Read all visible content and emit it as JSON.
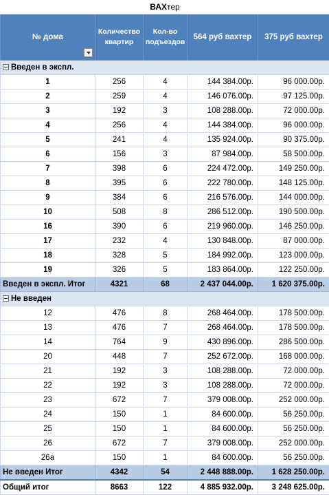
{
  "title_bold": "ВАХ",
  "title_rest": "тер",
  "headers": {
    "house": "№ дома",
    "apartments": "Количество квартир",
    "entrances": "Кол-во подъездов",
    "price564": "564 руб вахтер",
    "price375": "375 руб вахтер"
  },
  "groups": [
    {
      "label": "Введен в экспл.",
      "bold_numbers": true,
      "rows": [
        {
          "house": "1",
          "apartments": "256",
          "entrances": "4",
          "price564": "144 384.00р.",
          "price375": "96 000.00р."
        },
        {
          "house": "2",
          "apartments": "259",
          "entrances": "4",
          "price564": "146 076.00р.",
          "price375": "97 125.00р."
        },
        {
          "house": "3",
          "apartments": "192",
          "entrances": "3",
          "price564": "108 288.00р.",
          "price375": "72 000.00р."
        },
        {
          "house": "4",
          "apartments": "256",
          "entrances": "4",
          "price564": "144 384.00р.",
          "price375": "96 000.00р."
        },
        {
          "house": "5",
          "apartments": "241",
          "entrances": "4",
          "price564": "135 924.00р.",
          "price375": "90 375.00р."
        },
        {
          "house": "6",
          "apartments": "156",
          "entrances": "3",
          "price564": "87 984.00р.",
          "price375": "58 500.00р."
        },
        {
          "house": "7",
          "apartments": "398",
          "entrances": "6",
          "price564": "224 472.00р.",
          "price375": "149 250.00р."
        },
        {
          "house": "8",
          "apartments": "395",
          "entrances": "6",
          "price564": "222 780.00р.",
          "price375": "148 125.00р."
        },
        {
          "house": "9",
          "apartments": "384",
          "entrances": "6",
          "price564": "216 576.00р.",
          "price375": "144 000.00р."
        },
        {
          "house": "10",
          "apartments": "508",
          "entrances": "8",
          "price564": "286 512.00р.",
          "price375": "190 500.00р."
        },
        {
          "house": "16",
          "apartments": "390",
          "entrances": "6",
          "price564": "219 960.00р.",
          "price375": "146 250.00р."
        },
        {
          "house": "17",
          "apartments": "232",
          "entrances": "4",
          "price564": "130 848.00р.",
          "price375": "87 000.00р."
        },
        {
          "house": "18",
          "apartments": "328",
          "entrances": "5",
          "price564": "184 992.00р.",
          "price375": "123 000.00р."
        },
        {
          "house": "19",
          "apartments": "326",
          "entrances": "5",
          "price564": "183 864.00р.",
          "price375": "122 250.00р."
        }
      ],
      "total": {
        "label": "Введен в экспл. Итог",
        "apartments": "4321",
        "entrances": "68",
        "price564": "2 437 044.00р.",
        "price375": "1 620 375.00р."
      }
    },
    {
      "label": "Не введен",
      "bold_numbers": false,
      "rows": [
        {
          "house": "12",
          "apartments": "476",
          "entrances": "8",
          "price564": "268 464.00р.",
          "price375": "178 500.00р."
        },
        {
          "house": "13",
          "apartments": "476",
          "entrances": "7",
          "price564": "268 464.00р.",
          "price375": "178 500.00р."
        },
        {
          "house": "14",
          "apartments": "764",
          "entrances": "9",
          "price564": "430 896.00р.",
          "price375": "286 500.00р."
        },
        {
          "house": "20",
          "apartments": "448",
          "entrances": "7",
          "price564": "252 672.00р.",
          "price375": "168 000.00р."
        },
        {
          "house": "21",
          "apartments": "192",
          "entrances": "3",
          "price564": "108 288.00р.",
          "price375": "72 000.00р."
        },
        {
          "house": "22",
          "apartments": "192",
          "entrances": "3",
          "price564": "108 288.00р.",
          "price375": "72 000.00р."
        },
        {
          "house": "23",
          "apartments": "672",
          "entrances": "7",
          "price564": "379 008.00р.",
          "price375": "252 000.00р."
        },
        {
          "house": "24",
          "apartments": "150",
          "entrances": "1",
          "price564": "84 600.00р.",
          "price375": "56 250.00р."
        },
        {
          "house": "25",
          "apartments": "150",
          "entrances": "1",
          "price564": "84 600.00р.",
          "price375": "56 250.00р."
        },
        {
          "house": "26",
          "apartments": "672",
          "entrances": "7",
          "price564": "379 008.00р.",
          "price375": "252 000.00р."
        },
        {
          "house": "26а",
          "apartments": "150",
          "entrances": "1",
          "price564": "84 600.00р.",
          "price375": "56 250.00р."
        }
      ],
      "total": {
        "label": "Не введен Итог",
        "apartments": "4342",
        "entrances": "54",
        "price564": "2 448 888.00р.",
        "price375": "1 628 250.00р."
      }
    }
  ],
  "grand_total": {
    "label": "Общий итог",
    "apartments": "8663",
    "entrances": "122",
    "price564": "4 885 932.00р.",
    "price375": "3 248 625.00р."
  },
  "icons": {
    "filter": "filter-dropdown-icon",
    "collapse": "collapse-minus-icon"
  }
}
